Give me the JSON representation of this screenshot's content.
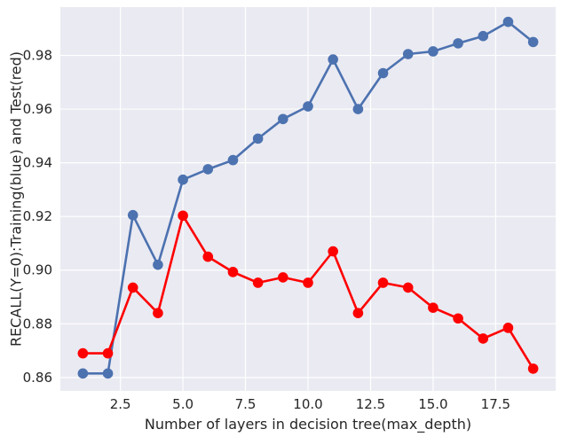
{
  "chart_data": {
    "type": "line",
    "xlabel": "Number of layers in decision tree(max_depth)",
    "ylabel": "RECALL(Y=0):Training(blue) and Test(red)",
    "xlim": [
      0.1,
      19.9
    ],
    "ylim": [
      0.855,
      0.998
    ],
    "xticks": [
      2.5,
      5.0,
      7.5,
      10.0,
      12.5,
      15.0,
      17.5
    ],
    "xtick_labels": [
      "2.5",
      "5.0",
      "7.5",
      "10.0",
      "12.5",
      "15.0",
      "17.5"
    ],
    "yticks": [
      0.86,
      0.88,
      0.9,
      0.92,
      0.94,
      0.96,
      0.98
    ],
    "ytick_labels": [
      "0.86",
      "0.88",
      "0.90",
      "0.92",
      "0.94",
      "0.96",
      "0.98"
    ],
    "grid": true,
    "background": "#eaeaf2",
    "x": [
      1,
      2,
      3,
      4,
      5,
      6,
      7,
      8,
      9,
      10,
      11,
      12,
      13,
      14,
      15,
      16,
      17,
      18,
      19
    ],
    "series": [
      {
        "color": "#4c72b0",
        "values": [
          0.8615,
          0.8615,
          0.9205,
          0.902,
          0.9337,
          0.9376,
          0.941,
          0.949,
          0.9563,
          0.961,
          0.9785,
          0.96,
          0.9734,
          0.9805,
          0.9815,
          0.9845,
          0.9872,
          0.9925,
          0.985
        ]
      },
      {
        "color": "#ff0000",
        "values": [
          0.869,
          0.869,
          0.8935,
          0.884,
          0.9203,
          0.905,
          0.8993,
          0.8953,
          0.8973,
          0.8953,
          0.907,
          0.884,
          0.8953,
          0.8935,
          0.886,
          0.882,
          0.8745,
          0.8785,
          0.8633
        ]
      }
    ]
  }
}
